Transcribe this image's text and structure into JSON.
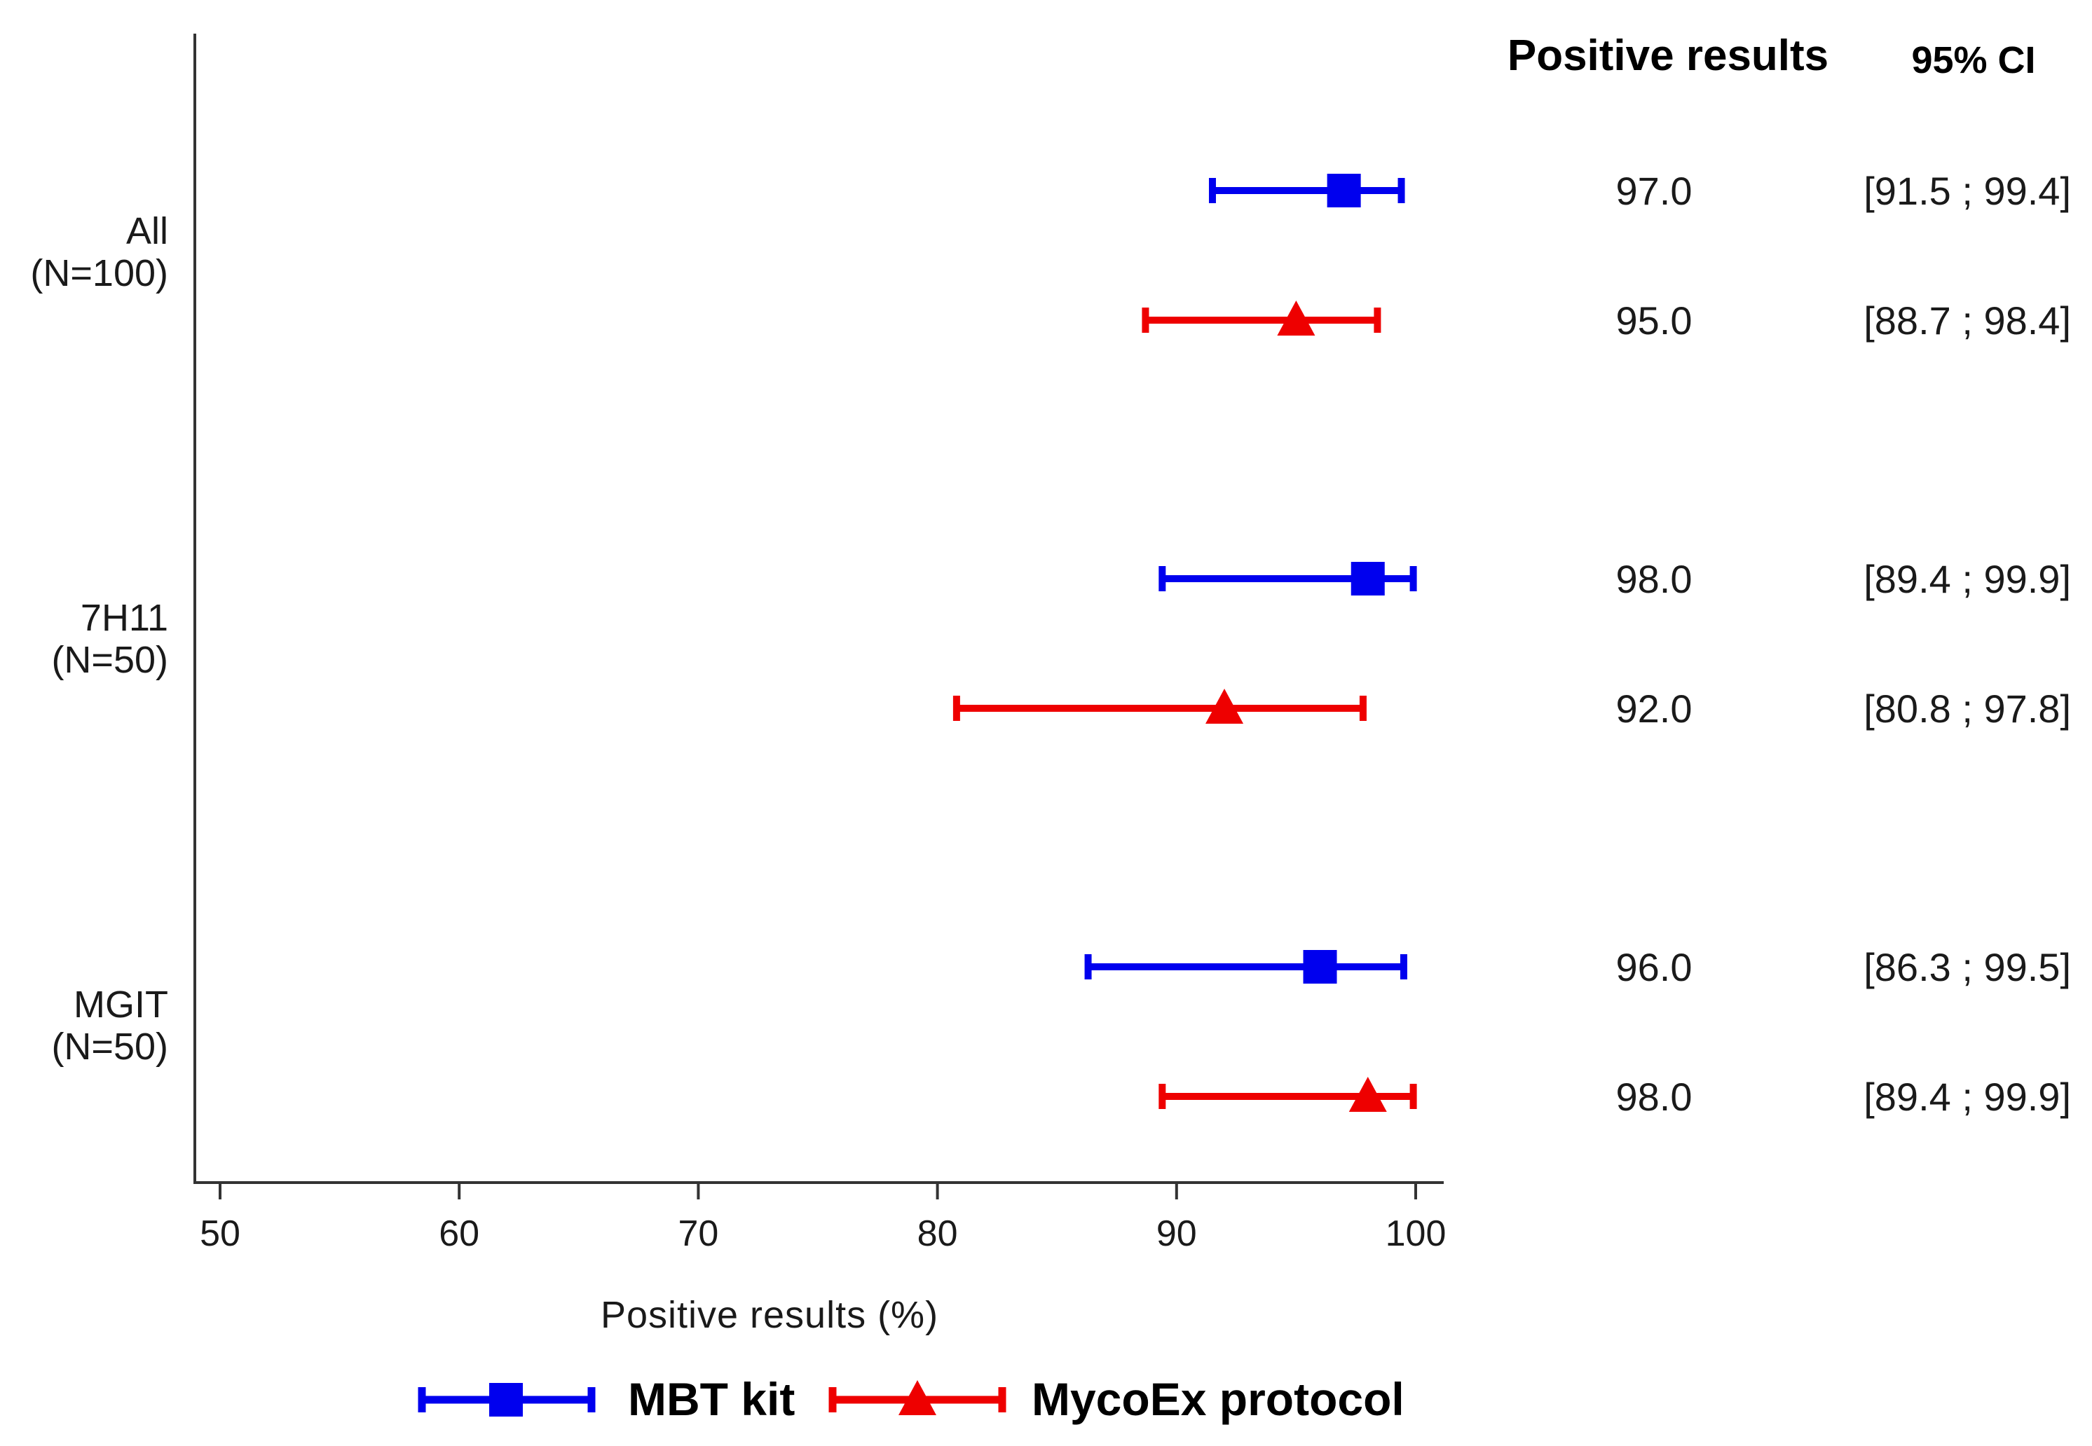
{
  "chart_data": {
    "type": "forest",
    "xlabel": "Positive results (%)",
    "xlim": [
      50,
      100
    ],
    "xticks": [
      50,
      60,
      70,
      80,
      90,
      100
    ],
    "column_headers": {
      "value": "Positive results",
      "ci": "95% CI"
    },
    "groups": [
      {
        "label_line1": "All",
        "label_line2": "(N=100)",
        "rows": [
          {
            "series": "MBT kit",
            "value": 97.0,
            "ci_low": 91.5,
            "ci_high": 99.4,
            "value_text": "97.0",
            "ci_text": "[91.5 ; 99.4]"
          },
          {
            "series": "MycoEx protocol",
            "value": 95.0,
            "ci_low": 88.7,
            "ci_high": 98.4,
            "value_text": "95.0",
            "ci_text": "[88.7 ; 98.4]"
          }
        ]
      },
      {
        "label_line1": "7H11",
        "label_line2": "(N=50)",
        "rows": [
          {
            "series": "MBT kit",
            "value": 98.0,
            "ci_low": 89.4,
            "ci_high": 99.9,
            "value_text": "98.0",
            "ci_text": "[89.4 ; 99.9]"
          },
          {
            "series": "MycoEx protocol",
            "value": 92.0,
            "ci_low": 80.8,
            "ci_high": 97.8,
            "value_text": "92.0",
            "ci_text": "[80.8 ; 97.8]"
          }
        ]
      },
      {
        "label_line1": "MGIT",
        "label_line2": "(N=50)",
        "rows": [
          {
            "series": "MBT kit",
            "value": 96.0,
            "ci_low": 86.3,
            "ci_high": 99.5,
            "value_text": "96.0",
            "ci_text": "[86.3 ; 99.5]"
          },
          {
            "series": "MycoEx protocol",
            "value": 98.0,
            "ci_low": 89.4,
            "ci_high": 99.9,
            "value_text": "98.0",
            "ci_text": "[89.4 ; 99.9]"
          }
        ]
      }
    ],
    "legend": [
      {
        "name": "MBT kit",
        "marker": "square",
        "color": "#0000ee"
      },
      {
        "name": "MycoEx protocol",
        "marker": "triangle",
        "color": "#ee0000"
      }
    ],
    "legend_position": "bottom-center"
  }
}
